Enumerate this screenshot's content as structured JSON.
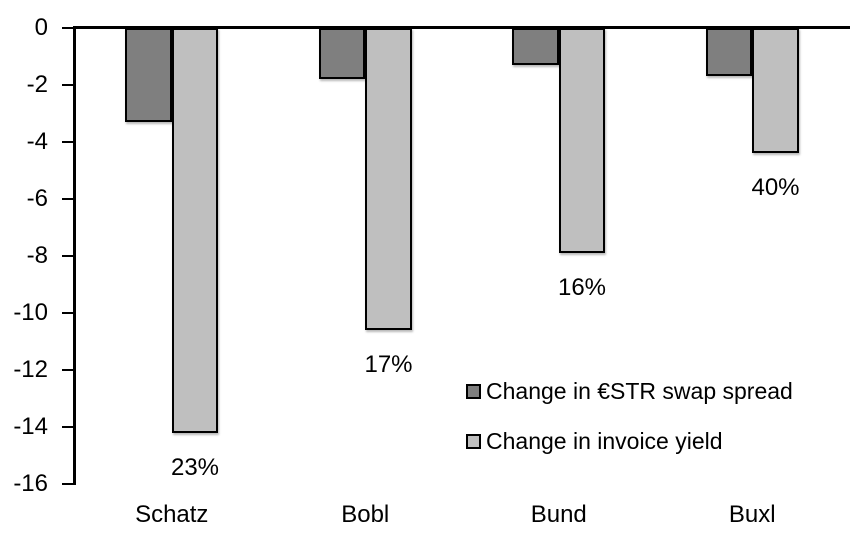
{
  "chart_data": {
    "type": "bar",
    "title": "",
    "xlabel": "",
    "ylabel": "",
    "categories": [
      "Schatz",
      "Bobl",
      "Bund",
      "Buxl"
    ],
    "series": [
      {
        "name": "Change in €STR swap spread",
        "color": "#7f7f7f",
        "values": [
          -3.3,
          -1.8,
          -1.3,
          -1.7
        ]
      },
      {
        "name": "Change in invoice yield",
        "color": "#bfbfbf",
        "values": [
          -14.2,
          -10.6,
          -7.9,
          -4.4
        ]
      }
    ],
    "bar_labels": {
      "series_index": 1,
      "values": [
        "23%",
        "17%",
        "16%",
        "40%"
      ]
    },
    "yticks": [
      "0",
      "-2",
      "-4",
      "-6",
      "-8",
      "-10",
      "-12",
      "-14",
      "-16"
    ],
    "ylim": [
      -16,
      0
    ],
    "grid": false,
    "legend": {
      "position": "inside-center-right",
      "items": [
        "Change in €STR swap spread",
        "Change in invoice yield"
      ]
    }
  },
  "colors": {
    "background": "#ffffff",
    "axis": "#000000",
    "text": "#000000",
    "bar_border": "#000000",
    "series_dark": "#7f7f7f",
    "series_light": "#bfbfbf"
  }
}
